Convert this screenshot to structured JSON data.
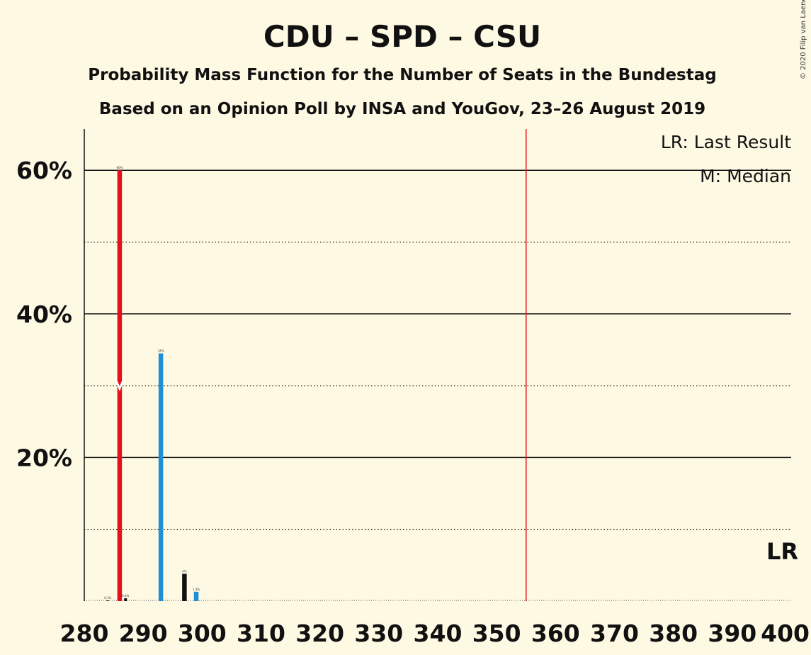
{
  "chart_data": {
    "type": "bar",
    "title": "CDU – SPD – CSU",
    "subtitle": "Probability Mass Function for the Number of Seats in the Bundestag",
    "subtitle2": "Based on an Opinion Poll by INSA and YouGov, 23–26 August 2019",
    "copyright": "© 2020 Filip van Laenen",
    "xlim": [
      280,
      400
    ],
    "ylim": [
      0,
      65
    ],
    "x_ticks": [
      280,
      290,
      300,
      310,
      320,
      330,
      340,
      350,
      360,
      370,
      380,
      390,
      400
    ],
    "y_ticks": [
      {
        "value": 20,
        "label": "20%"
      },
      {
        "value": 40,
        "label": "40%"
      },
      {
        "value": 60,
        "label": "60%"
      }
    ],
    "dotted_gridlines": [
      10,
      30,
      50
    ],
    "bars": [
      {
        "x": 284,
        "value": 0.1,
        "label": "0.1%",
        "color": "#111111"
      },
      {
        "x": 286,
        "value": 60,
        "label": "60%",
        "color": "#e5101b",
        "median": true
      },
      {
        "x": 287,
        "value": 0.4,
        "label": "0.4%",
        "color": "#111111"
      },
      {
        "x": 293,
        "value": 34.5,
        "label": "34%",
        "color": "#1e8fd6"
      },
      {
        "x": 297,
        "value": 3.8,
        "label": "4%",
        "color": "#111111"
      },
      {
        "x": 299,
        "value": 1.3,
        "label": "1.3%",
        "color": "#1e8fd6"
      }
    ],
    "majority_line": {
      "x": 355,
      "color": "#e5101b"
    },
    "last_result": {
      "x": 400,
      "label": "LR"
    },
    "legend": [
      {
        "key": "LR",
        "text": "LR: Last Result"
      },
      {
        "key": "M",
        "text": "M: Median"
      }
    ],
    "legend_placement": "top-right"
  }
}
